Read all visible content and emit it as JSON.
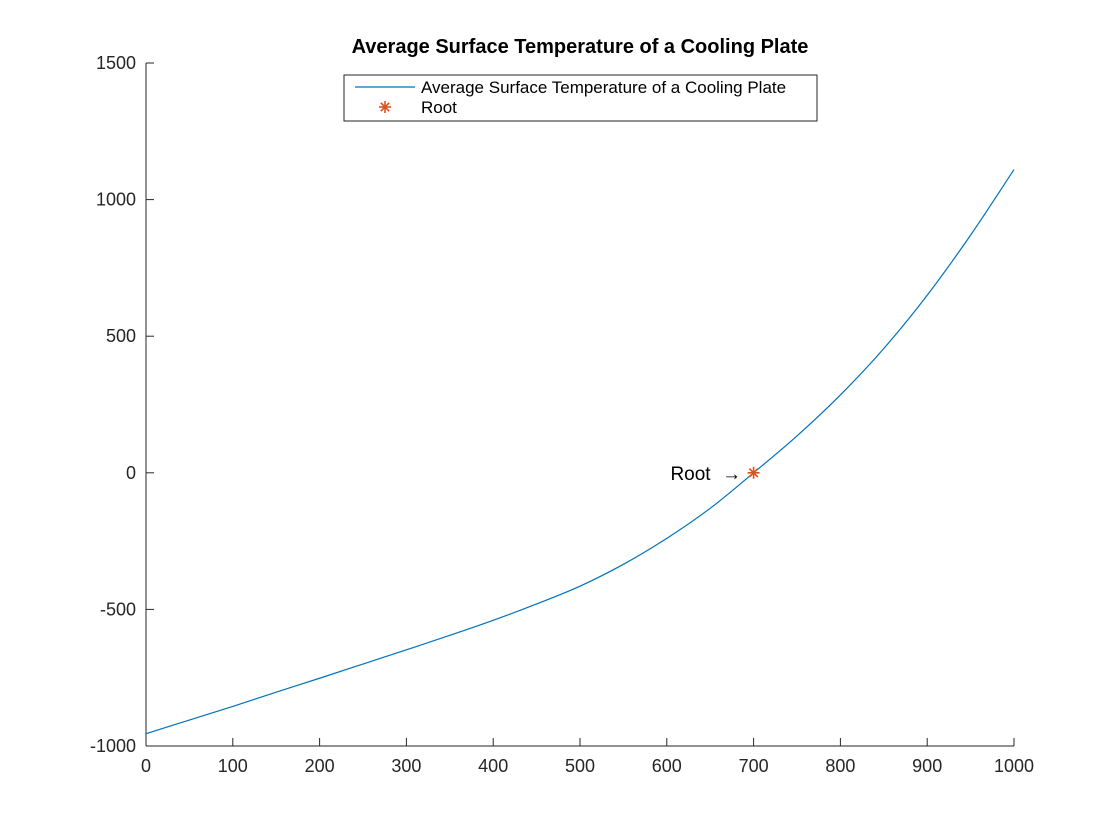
{
  "chart_data": {
    "type": "line",
    "title": "Average Surface Temperature of a Cooling Plate",
    "xlabel": "",
    "ylabel": "",
    "xlim": [
      0,
      1000
    ],
    "ylim": [
      -1000,
      1500
    ],
    "xticks": [
      0,
      100,
      200,
      300,
      400,
      500,
      600,
      700,
      800,
      900,
      1000
    ],
    "yticks": [
      -1000,
      -500,
      0,
      500,
      1000,
      1500
    ],
    "xtick_labels": [
      "0",
      "100",
      "200",
      "300",
      "400",
      "500",
      "600",
      "700",
      "800",
      "900",
      "1000"
    ],
    "ytick_labels": [
      "-1000",
      "-500",
      "0",
      "500",
      "1000",
      "1500"
    ],
    "grid": false,
    "legend_location": "top-center",
    "series": [
      {
        "name": "Average Surface Temperature of a Cooling Plate",
        "type": "line",
        "color": "#0072BD",
        "x": [
          0,
          50,
          100,
          150,
          200,
          250,
          300,
          350,
          400,
          450,
          500,
          550,
          600,
          650,
          700,
          750,
          800,
          850,
          900,
          950,
          1000
        ],
        "y": [
          -955,
          -905,
          -855,
          -803,
          -752,
          -700,
          -648,
          -595,
          -540,
          -480,
          -415,
          -335,
          -240,
          -130,
          0,
          135,
          285,
          455,
          650,
          870,
          1110
        ]
      },
      {
        "name": "Root",
        "type": "scatter",
        "marker": "asterisk",
        "color": "#D95319",
        "x": [
          700
        ],
        "y": [
          0
        ]
      }
    ],
    "annotations": [
      {
        "text": "Root",
        "arrow": "→",
        "x": 700,
        "y": 0
      }
    ]
  }
}
